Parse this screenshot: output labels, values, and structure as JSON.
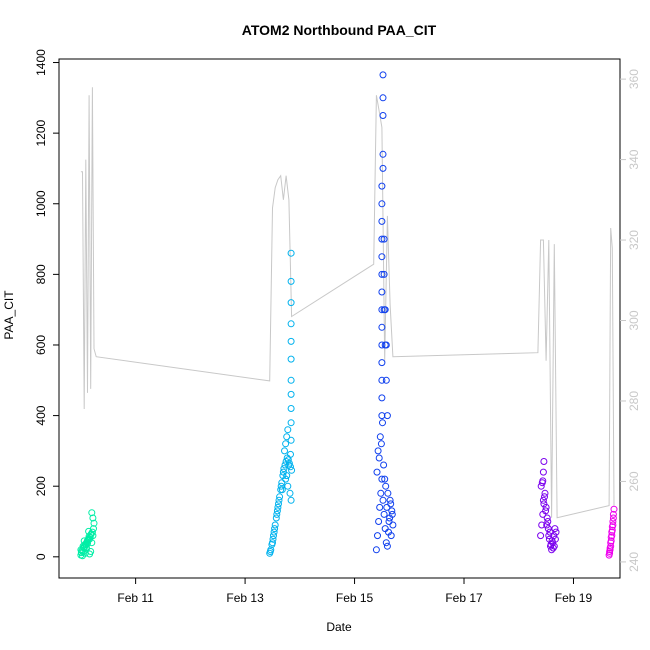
{
  "chart_data": {
    "type": "scatter",
    "title": "ATOM2 Northbound PAA_CIT",
    "xlabel": "Date",
    "ylabel": "PAA_CIT",
    "x_unit": "day of February",
    "xlim": [
      9.6,
      19.85
    ],
    "ylim": [
      -60,
      1410
    ],
    "y2lim": [
      236,
      365
    ],
    "x_ticks": [
      11,
      13,
      15,
      17,
      19
    ],
    "x_tick_labels": [
      "Feb 11",
      "Feb 13",
      "Feb 15",
      "Feb 17",
      "Feb 19"
    ],
    "y_ticks": [
      0,
      200,
      400,
      600,
      800,
      1000,
      1200,
      1400
    ],
    "y_tick_labels": [
      "0",
      "200",
      "400",
      "600",
      "800",
      "1000",
      "1200",
      "1400"
    ],
    "y2_ticks": [
      240,
      260,
      280,
      300,
      320,
      340,
      360
    ],
    "y2_tick_labels": [
      "240",
      "260",
      "280",
      "300",
      "320",
      "340",
      "360"
    ],
    "grid": false,
    "legend": "none",
    "line_color": "#c8c8c8",
    "secondary_line": {
      "axis": "right",
      "color": "#c8c8c8",
      "x": [
        10.0,
        10.03,
        10.06,
        10.09,
        10.12,
        10.15,
        10.18,
        10.21,
        10.24,
        10.28,
        13.45,
        13.5,
        13.55,
        13.6,
        13.65,
        13.7,
        13.75,
        13.8,
        13.85,
        15.35,
        15.4,
        15.45,
        15.5,
        15.55,
        15.6,
        15.65,
        15.7,
        18.35,
        18.4,
        18.45,
        18.5,
        18.55,
        18.6,
        18.65,
        18.7,
        19.65,
        19.68,
        19.71,
        19.74
      ],
      "y": [
        337,
        337,
        278,
        340,
        282,
        356,
        283,
        358,
        293,
        291,
        285,
        328,
        333,
        335,
        336,
        330,
        336,
        330,
        301,
        314,
        356,
        352,
        348,
        290,
        326,
        304,
        291,
        292,
        320,
        320,
        290,
        320,
        251,
        319,
        251,
        254,
        323,
        318,
        254
      ]
    },
    "series": [
      {
        "color": "#00eea6",
        "x": [
          10.0,
          10.02,
          10.04,
          10.06,
          10.08,
          10.1,
          10.12,
          10.14,
          10.16,
          10.18,
          10.2,
          10.22,
          10.01,
          10.05,
          10.09,
          10.13,
          10.17,
          10.21,
          10.03,
          10.07,
          10.11,
          10.15,
          10.19,
          10.23,
          10.0,
          10.06,
          10.12,
          10.18,
          10.24,
          10.04,
          10.1,
          10.16,
          10.22,
          10.08,
          10.14,
          10.2
        ],
        "y": [
          5,
          18,
          30,
          45,
          10,
          22,
          38,
          52,
          8,
          15,
          40,
          60,
          12,
          25,
          35,
          48,
          55,
          70,
          3,
          28,
          42,
          58,
          65,
          80,
          20,
          33,
          46,
          62,
          95,
          14,
          27,
          50,
          110,
          36,
          72,
          125
        ]
      },
      {
        "color": "#00b2ee",
        "x": [
          13.45,
          13.47,
          13.49,
          13.51,
          13.53,
          13.55,
          13.57,
          13.59,
          13.61,
          13.63,
          13.65,
          13.67,
          13.69,
          13.71,
          13.73,
          13.75,
          13.77,
          13.79,
          13.81,
          13.83,
          13.85,
          13.46,
          13.5,
          13.54,
          13.58,
          13.62,
          13.66,
          13.7,
          13.74,
          13.78,
          13.82,
          13.84,
          13.52,
          13.6,
          13.68,
          13.76,
          13.8,
          13.83,
          13.84,
          13.84,
          13.84,
          13.84,
          13.84,
          13.84,
          13.84,
          13.84,
          13.84,
          13.84,
          13.84,
          13.72,
          13.74,
          13.76,
          13.78
        ],
        "y": [
          10,
          20,
          35,
          50,
          70,
          90,
          110,
          130,
          150,
          170,
          190,
          210,
          230,
          250,
          260,
          270,
          280,
          275,
          265,
          255,
          245,
          15,
          40,
          80,
          120,
          160,
          200,
          240,
          220,
          200,
          180,
          160,
          60,
          140,
          190,
          230,
          260,
          290,
          330,
          380,
          420,
          460,
          500,
          560,
          610,
          660,
          720,
          780,
          860,
          300,
          320,
          340,
          360
        ]
      },
      {
        "color": "#1040ee",
        "x": [
          15.4,
          15.42,
          15.44,
          15.46,
          15.48,
          15.5,
          15.52,
          15.54,
          15.56,
          15.58,
          15.6,
          15.62,
          15.64,
          15.66,
          15.68,
          15.7,
          15.41,
          15.45,
          15.49,
          15.53,
          15.57,
          15.61,
          15.65,
          15.69,
          15.43,
          15.47,
          15.51,
          15.55,
          15.59,
          15.63,
          15.67,
          15.5,
          15.5,
          15.5,
          15.5,
          15.5,
          15.5,
          15.5,
          15.5,
          15.5,
          15.5,
          15.5,
          15.5,
          15.5,
          15.5,
          15.52,
          15.52,
          15.52,
          15.52,
          15.52,
          15.54,
          15.54,
          15.54,
          15.56,
          15.56,
          15.58,
          15.58,
          15.6
        ],
        "y": [
          20,
          60,
          100,
          140,
          180,
          220,
          160,
          120,
          80,
          40,
          30,
          70,
          110,
          150,
          130,
          90,
          240,
          280,
          320,
          260,
          200,
          180,
          160,
          120,
          300,
          340,
          380,
          220,
          140,
          100,
          60,
          400,
          450,
          500,
          550,
          600,
          650,
          700,
          750,
          800,
          850,
          900,
          950,
          1000,
          1050,
          1100,
          1140,
          1250,
          1300,
          1365,
          700,
          800,
          900,
          600,
          700,
          500,
          600,
          400
        ]
      },
      {
        "color": "#7b00ee",
        "x": [
          18.4,
          18.42,
          18.44,
          18.46,
          18.48,
          18.5,
          18.52,
          18.54,
          18.56,
          18.58,
          18.6,
          18.62,
          18.64,
          18.66,
          18.68,
          18.41,
          18.45,
          18.49,
          18.53,
          18.57,
          18.61,
          18.65,
          18.43,
          18.47,
          18.51,
          18.55,
          18.59,
          18.63,
          18.67,
          18.45,
          18.46,
          18.44
        ],
        "y": [
          60,
          90,
          120,
          150,
          180,
          140,
          110,
          80,
          50,
          30,
          20,
          40,
          60,
          80,
          70,
          200,
          160,
          130,
          100,
          70,
          45,
          30,
          210,
          170,
          90,
          60,
          35,
          25,
          50,
          240,
          270,
          215
        ]
      },
      {
        "color": "#ee00ee",
        "x": [
          19.65,
          19.66,
          19.67,
          19.68,
          19.69,
          19.7,
          19.71,
          19.72,
          19.73,
          19.74,
          19.66,
          19.68,
          19.7,
          19.72,
          19.67,
          19.69,
          19.71,
          19.73
        ],
        "y": [
          5,
          15,
          25,
          40,
          55,
          70,
          85,
          100,
          120,
          135,
          10,
          30,
          60,
          90,
          20,
          45,
          75,
          110
        ]
      }
    ]
  }
}
